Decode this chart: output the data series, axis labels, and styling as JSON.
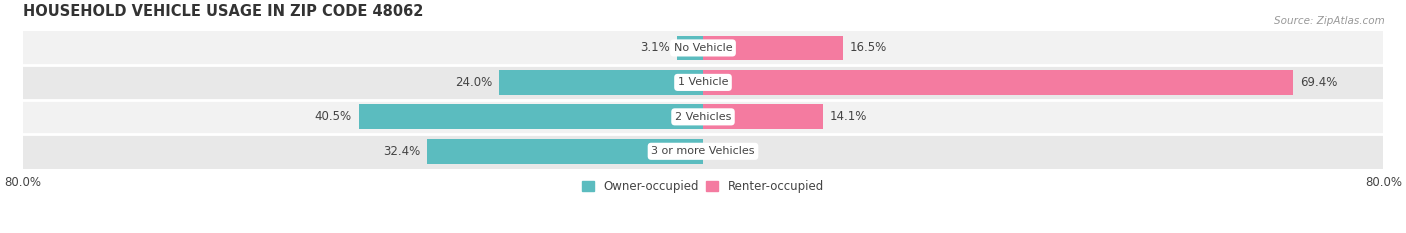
{
  "title": "HOUSEHOLD VEHICLE USAGE IN ZIP CODE 48062",
  "source": "Source: ZipAtlas.com",
  "categories": [
    "No Vehicle",
    "1 Vehicle",
    "2 Vehicles",
    "3 or more Vehicles"
  ],
  "owner_values": [
    3.1,
    24.0,
    40.5,
    32.4
  ],
  "renter_values": [
    16.5,
    69.4,
    14.1,
    0.0
  ],
  "owner_color": "#5bbcbf",
  "renter_color": "#f47ba0",
  "label_color": "#555555",
  "axis_label_left": "80.0%",
  "axis_label_right": "80.0%",
  "xlim": [
    -80,
    80
  ],
  "bar_height": 0.72,
  "background_color": "#ffffff",
  "row_bg_even": "#f2f2f2",
  "row_bg_odd": "#e8e8e8",
  "title_fontsize": 10.5,
  "source_fontsize": 7.5,
  "bar_label_fontsize": 8.5,
  "category_fontsize": 8,
  "legend_fontsize": 8.5,
  "title_color": "#333333",
  "source_color": "#999999",
  "text_color": "#444444"
}
